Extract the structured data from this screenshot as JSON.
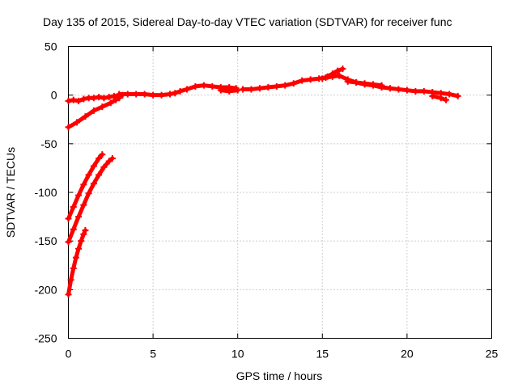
{
  "chart_data": {
    "type": "scatter",
    "title": "Day 135 of 2015, Sidereal Day-to-day VTEC variation (SDTVAR) for receiver func",
    "xlabel": "GPS time / hours",
    "ylabel": "SDTVAR / TECUs",
    "xlim": [
      0,
      25
    ],
    "ylim": [
      -250,
      50
    ],
    "xticks": [
      0,
      5,
      10,
      15,
      20,
      25
    ],
    "yticks": [
      50,
      0,
      -50,
      -100,
      -150,
      -200,
      -250
    ],
    "grid": true,
    "series_color": "#ff0000",
    "series": [
      {
        "x": [
          0.0,
          0.3,
          0.6,
          0.9,
          1.2,
          1.5,
          1.8,
          2.1,
          2.4,
          2.7,
          3.0,
          3.2
        ],
        "y": [
          -6,
          -5,
          -6,
          -4,
          -3,
          -3,
          -2,
          -3,
          -2,
          -1,
          0,
          0
        ]
      },
      {
        "x": [
          0.0,
          0.5,
          1.0,
          1.5,
          2.0,
          2.5,
          2.8,
          3.0
        ],
        "y": [
          -33,
          -28,
          -22,
          -16,
          -12,
          -8,
          -5,
          -3
        ]
      },
      {
        "x": [
          3.0,
          3.5,
          4.0,
          4.5,
          5.0,
          5.5,
          6.0,
          6.3,
          6.6,
          7.0,
          7.5,
          8.0,
          8.5,
          9.0,
          9.5,
          9.9
        ],
        "y": [
          1,
          1,
          1,
          1,
          0,
          0,
          1,
          2,
          4,
          6,
          9,
          10,
          9,
          8,
          8,
          7
        ]
      },
      {
        "x": [
          9.0,
          9.5,
          10.0
        ],
        "y": [
          5,
          4,
          5
        ]
      },
      {
        "x": [
          10.3,
          10.8,
          11.3,
          11.8,
          12.3,
          12.8,
          13.3,
          13.8,
          14.3,
          14.8,
          15.2,
          15.6,
          16.0
        ],
        "y": [
          6,
          6,
          7,
          8,
          9,
          10,
          12,
          15,
          16,
          17,
          18,
          19,
          20
        ]
      },
      {
        "x": [
          15.0,
          15.3,
          15.6,
          15.9,
          16.2
        ],
        "y": [
          17,
          19,
          22,
          25,
          27
        ]
      },
      {
        "x": [
          16.0,
          16.5,
          17.0,
          17.5,
          18.0,
          18.5,
          19.0,
          19.5,
          20.0,
          20.5,
          21.0,
          21.5,
          22.0,
          22.5,
          23.0
        ],
        "y": [
          20,
          16,
          13,
          11,
          10,
          8,
          7,
          6,
          5,
          4,
          4,
          3,
          2,
          1,
          -1
        ]
      },
      {
        "x": [
          16.5,
          17.0,
          17.5,
          18.0,
          18.5
        ],
        "y": [
          14,
          13,
          12,
          11,
          10
        ]
      },
      {
        "x": [
          21.5,
          22.0,
          22.3
        ],
        "y": [
          -1,
          -3,
          -5
        ]
      },
      {
        "x": [
          0.0,
          0.3,
          0.6,
          0.9,
          1.2,
          1.5,
          1.8,
          2.0
        ],
        "y": [
          -127,
          -115,
          -103,
          -92,
          -82,
          -73,
          -65,
          -61
        ]
      },
      {
        "x": [
          0.0,
          0.3,
          0.6,
          0.9,
          1.2,
          1.5,
          1.8,
          2.1,
          2.4,
          2.6
        ],
        "y": [
          -151,
          -138,
          -125,
          -113,
          -101,
          -91,
          -82,
          -74,
          -68,
          -65
        ]
      },
      {
        "x": [
          0.0,
          0.15,
          0.3,
          0.45,
          0.6,
          0.75,
          0.9,
          1.0
        ],
        "y": [
          -205,
          -190,
          -178,
          -167,
          -158,
          -150,
          -143,
          -139
        ]
      }
    ]
  }
}
